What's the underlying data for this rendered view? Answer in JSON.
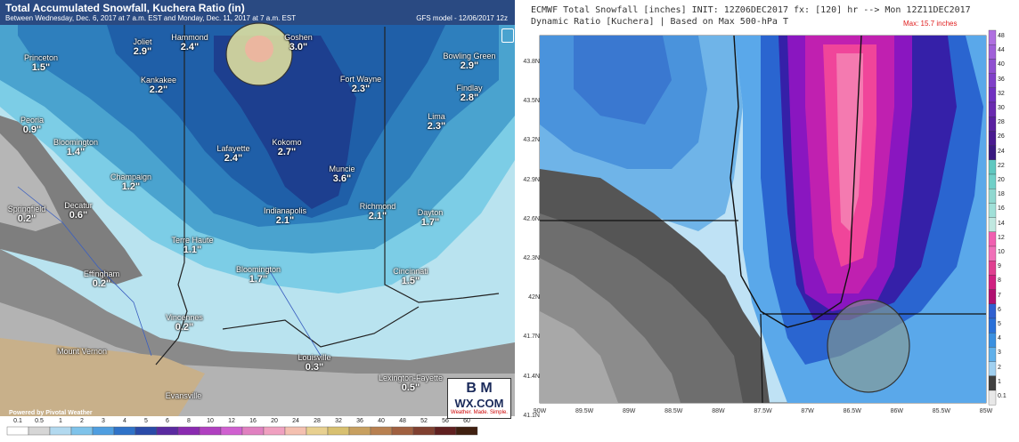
{
  "left_panel": {
    "title": "Total Accumulated Snowfall, Kuchera Ratio (in)",
    "subtitle": "Between Wednesday, Dec. 6, 2017 at 7 a.m. EST and Monday, Dec. 11, 2017 at 7 a.m. EST",
    "model": "GFS model - 12/06/2017 12z",
    "powered_by": "Powered by Pivotal Weather",
    "logo_text_1": "B M",
    "logo_text_2": "WX.COM",
    "logo_text_3": "Weather. Made. Simple.",
    "scale_labels": [
      "0.1",
      "0.5",
      "1",
      "2",
      "3",
      "4",
      "5",
      "6",
      "8",
      "10",
      "12",
      "16",
      "20",
      "24",
      "28",
      "32",
      "36",
      "40",
      "48",
      "52",
      "56",
      "60"
    ],
    "cities": [
      {
        "name": "Hammond",
        "value": "2.4\""
      },
      {
        "name": "Joliet",
        "value": "2.9\""
      },
      {
        "name": "Goshen",
        "value": "3.0\""
      },
      {
        "name": "Princeton",
        "value": "1.5\""
      },
      {
        "name": "Bowling Green",
        "value": "2.9\""
      },
      {
        "name": "Kankakee",
        "value": "2.2\""
      },
      {
        "name": "Fort Wayne",
        "value": "2.3\""
      },
      {
        "name": "Findlay",
        "value": "2.8\""
      },
      {
        "name": "Peoria",
        "value": "0.9\""
      },
      {
        "name": "Lima",
        "value": "2.3\""
      },
      {
        "name": "Bloomington",
        "value": "1.4\""
      },
      {
        "name": "Lafayette",
        "value": "2.4\""
      },
      {
        "name": "Kokomo",
        "value": "2.7\""
      },
      {
        "name": "Champaign",
        "value": "1.2\""
      },
      {
        "name": "Muncie",
        "value": "3.6\""
      },
      {
        "name": "Springfield",
        "value": "0.2\""
      },
      {
        "name": "Decatur",
        "value": "0.6\""
      },
      {
        "name": "Richmond",
        "value": "2.1\""
      },
      {
        "name": "Indianapolis",
        "value": "2.1\""
      },
      {
        "name": "Dayton",
        "value": "1.7\""
      },
      {
        "name": "Terre Haute",
        "value": "1.1\""
      },
      {
        "name": "Effingham",
        "value": "0.2\""
      },
      {
        "name": "Bloomington",
        "value": "1.7\""
      },
      {
        "name": "Cincinnati",
        "value": "1.5\""
      },
      {
        "name": "Vincennes",
        "value": "0.2\""
      },
      {
        "name": "Mount Vernon",
        "value": ""
      },
      {
        "name": "Louisville",
        "value": "0.3\""
      },
      {
        "name": "Lexington-Fayette",
        "value": "0.5\""
      },
      {
        "name": "Evansville",
        "value": ""
      }
    ]
  },
  "right_panel": {
    "title": "ECMWF Total Snowfall [inches] INIT: 12Z06DEC2017 fx: [120] hr --> Mon 12Z11DEC2017",
    "subtitle": "Dynamic Ratio [Kuchera] | Based on Max 500-hPa T",
    "max_label": "Max: 15.7 inches",
    "lat_labels": [
      "43.8N",
      "43.5N",
      "43.2N",
      "42.9N",
      "42.6N",
      "42.3N",
      "42N",
      "41.7N",
      "41.4N",
      "41.1N"
    ],
    "lon_labels": [
      "90W",
      "89.5W",
      "89W",
      "88.5W",
      "88W",
      "87.5W",
      "87W",
      "86.5W",
      "86W",
      "85.5W",
      "85W"
    ],
    "colorbar_labels": [
      "48",
      "44",
      "40",
      "36",
      "32",
      "30",
      "28",
      "26",
      "24",
      "22",
      "20",
      "18",
      "16",
      "14",
      "12",
      "10",
      "9",
      "8",
      "7",
      "6",
      "5",
      "4",
      "3",
      "2",
      "1",
      "0.1"
    ]
  },
  "colors": {
    "title_bar": "#2a4a82",
    "highlight_circle_fill": "#e8e6a0",
    "highlight_circle_stroke": "#333333",
    "pink_max": "#f0459a",
    "purple": "#8a16c0"
  }
}
